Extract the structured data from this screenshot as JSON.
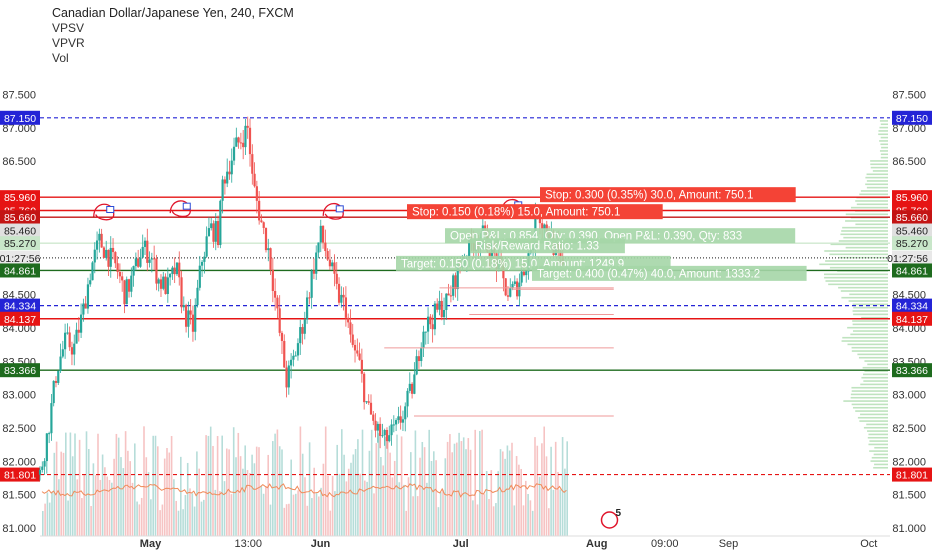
{
  "header": {
    "title": "Canadian Dollar/Japanese Yen, 240, FXCM",
    "indicators": [
      "VPSV",
      "VPVR",
      "Vol"
    ]
  },
  "colors": {
    "up": "#26a69a",
    "down": "#ef5350",
    "volume_up": "#b6ddd9",
    "volume_down": "#f6c3c3",
    "volume_ma": "#f08b5a",
    "blue_line": "#2424d6",
    "red_line": "#e61414",
    "dark_red_line": "#c31414",
    "green_line": "#1e6b1e",
    "profile": "#bfe3bf",
    "label_stop": "#f44336",
    "label_target": "#a5d6a7",
    "label_open": "#a5d6a7"
  },
  "chart_data": {
    "type": "candlestick",
    "title": "Canadian Dollar/Japanese Yen, 240, FXCM",
    "ylim": [
      80.9,
      87.8
    ],
    "y_ticks": [
      81.0,
      81.5,
      82.0,
      82.5,
      83.0,
      83.5,
      84.0,
      84.5,
      85.0,
      85.5,
      86.0,
      86.5,
      87.0,
      87.5
    ],
    "y_tick_labels": [
      "81.000",
      "81.500",
      "82.000",
      "82.500",
      "83.000",
      "83.500",
      "84.000",
      "84.500",
      "85.000",
      "85.500",
      "86.000",
      "86.500",
      "87.000",
      "87.500"
    ],
    "x_labels": [
      {
        "label": "May",
        "pos": 0.13
      },
      {
        "label": "13:00",
        "pos": 0.245
      },
      {
        "label": "Jun",
        "pos": 0.33
      },
      {
        "label": "Jul",
        "pos": 0.495
      },
      {
        "label": "Aug",
        "pos": 0.655
      },
      {
        "label": "09:00",
        "pos": 0.735
      },
      {
        "label": "Sep",
        "pos": 0.81
      },
      {
        "label": "Oct",
        "pos": 0.975
      }
    ],
    "price_path": [
      [
        0.0,
        81.8
      ],
      [
        0.01,
        82.5
      ],
      [
        0.02,
        83.4
      ],
      [
        0.03,
        83.8
      ],
      [
        0.04,
        83.7
      ],
      [
        0.05,
        84.2
      ],
      [
        0.06,
        84.9
      ],
      [
        0.07,
        85.3
      ],
      [
        0.08,
        85.1
      ],
      [
        0.09,
        84.9
      ],
      [
        0.1,
        84.5
      ],
      [
        0.11,
        84.8
      ],
      [
        0.12,
        85.2
      ],
      [
        0.13,
        85.1
      ],
      [
        0.14,
        84.7
      ],
      [
        0.15,
        84.6
      ],
      [
        0.16,
        84.9
      ],
      [
        0.17,
        84.2
      ],
      [
        0.18,
        84.0
      ],
      [
        0.19,
        85.0
      ],
      [
        0.2,
        85.5
      ],
      [
        0.21,
        85.4
      ],
      [
        0.215,
        86.2
      ],
      [
        0.23,
        86.7
      ],
      [
        0.24,
        86.9
      ],
      [
        0.245,
        87.0
      ],
      [
        0.25,
        86.2
      ],
      [
        0.26,
        85.6
      ],
      [
        0.27,
        85.1
      ],
      [
        0.28,
        84.1
      ],
      [
        0.29,
        83.2
      ],
      [
        0.3,
        83.6
      ],
      [
        0.31,
        84.1
      ],
      [
        0.32,
        84.8
      ],
      [
        0.33,
        85.4
      ],
      [
        0.34,
        85.0
      ],
      [
        0.35,
        84.5
      ],
      [
        0.36,
        84.3
      ],
      [
        0.365,
        83.8
      ],
      [
        0.375,
        83.5
      ],
      [
        0.385,
        82.8
      ],
      [
        0.395,
        82.5
      ],
      [
        0.405,
        82.3
      ],
      [
        0.42,
        82.5
      ],
      [
        0.43,
        82.8
      ],
      [
        0.44,
        83.2
      ],
      [
        0.45,
        84.0
      ],
      [
        0.46,
        84.1
      ],
      [
        0.47,
        84.3
      ],
      [
        0.48,
        84.4
      ],
      [
        0.49,
        84.8
      ],
      [
        0.5,
        85.1
      ],
      [
        0.51,
        85.3
      ],
      [
        0.52,
        85.4
      ],
      [
        0.53,
        85.2
      ],
      [
        0.54,
        84.9
      ],
      [
        0.55,
        84.5
      ],
      [
        0.56,
        84.6
      ],
      [
        0.57,
        84.9
      ],
      [
        0.58,
        85.3
      ],
      [
        0.585,
        85.8
      ],
      [
        0.59,
        85.6
      ],
      [
        0.6,
        85.4
      ],
      [
        0.61,
        85.0
      ],
      [
        0.615,
        84.9
      ]
    ],
    "horizontal_lines": [
      {
        "value": 87.15,
        "label": "87.150",
        "style": "dashed",
        "color": "#2424d6"
      },
      {
        "value": 85.96,
        "label": "85.960",
        "style": "solid",
        "color": "#e61414"
      },
      {
        "value": 85.76,
        "label": "85.760",
        "style": "solid",
        "color": "#e61414"
      },
      {
        "value": 85.66,
        "label": "85.660",
        "style": "solid",
        "color": "#c31414"
      },
      {
        "value": 85.46,
        "label": "85.460",
        "style": "none",
        "color": "#999999"
      },
      {
        "value": 85.27,
        "label": "85.270",
        "style": "solid",
        "color": "#cfe8cf"
      },
      {
        "value": 85.05,
        "label": "01:27:56",
        "style": "dotted",
        "color": "#444444"
      },
      {
        "value": 84.861,
        "label": "84.861",
        "style": "solid",
        "color": "#1e6b1e"
      },
      {
        "value": 84.334,
        "label": "84.334",
        "style": "dashed",
        "color": "#2424d6"
      },
      {
        "value": 84.137,
        "label": "84.137",
        "style": "solid",
        "color": "#e61414"
      },
      {
        "value": 83.366,
        "label": "83.366",
        "style": "solid",
        "color": "#1e6b1e"
      },
      {
        "value": 81.801,
        "label": "81.801",
        "style": "dashed",
        "color": "#e61414"
      }
    ],
    "annotations": [
      {
        "text": "Stop: 0.300 (0.35%) 30.0, Amount: 750.1",
        "kind": "stop"
      },
      {
        "text": "Stop: 0.150 (0.18%) 15.0, Amount: 750.1",
        "kind": "stop"
      },
      {
        "text": "Open P&L: 0.854, Qty: 0.390, Open P&L: 0.390, Qty: 833",
        "kind": "open"
      },
      {
        "text": "Risk/Reward Ratio: 1.33",
        "kind": "open"
      },
      {
        "text": "Target: 0.150 (0.18%) 15.0, Amount: 1249.9",
        "kind": "target"
      },
      {
        "text": "Target: 0.400 (0.47%) 40.0, Amount: 1333.2",
        "kind": "target"
      }
    ],
    "badge": "5"
  }
}
